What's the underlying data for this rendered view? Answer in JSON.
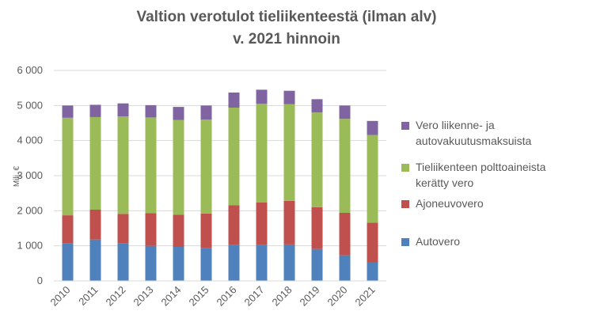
{
  "chart_data": {
    "type": "bar",
    "stacked": true,
    "title_lines": [
      "Valtion verotulot tieliikenteestä (ilman alv)",
      "v. 2021 hinnoin"
    ],
    "ylabel": "Milj. €",
    "xlabel": "",
    "categories": [
      "2010",
      "2011",
      "2012",
      "2013",
      "2014",
      "2015",
      "2016",
      "2017",
      "2018",
      "2019",
      "2020",
      "2021"
    ],
    "ylim": [
      0,
      6000
    ],
    "yticks": [
      0,
      1000,
      2000,
      3000,
      4000,
      5000,
      6000
    ],
    "ytick_labels": [
      "0",
      "1 000",
      "2 000",
      "3 000",
      "4 000",
      "5 000",
      "6 000"
    ],
    "grid": true,
    "legend_position": "right",
    "series": [
      {
        "name": "Autovero",
        "color": "#4f81bd",
        "values": [
          1080,
          1180,
          1080,
          1000,
          970,
          940,
          1020,
          1020,
          1040,
          910,
          730,
          520
        ]
      },
      {
        "name": "Ajoneuvovero",
        "color": "#c0504d",
        "values": [
          790,
          850,
          830,
          930,
          920,
          980,
          1140,
          1220,
          1240,
          1190,
          1210,
          1140
        ]
      },
      {
        "name": "Tieliikenteen polttoaineista kerätty vero",
        "color": "#9bbb59",
        "values": [
          2780,
          2640,
          2780,
          2730,
          2700,
          2680,
          2780,
          2810,
          2760,
          2700,
          2680,
          2500
        ]
      },
      {
        "name": "Vero liikenne- ja autovakuutusmaksuista",
        "color": "#8064a2",
        "values": [
          350,
          350,
          370,
          350,
          370,
          400,
          430,
          400,
          380,
          380,
          380,
          400
        ]
      }
    ],
    "legend": [
      {
        "label_lines": [
          "Vero liikenne- ja",
          "autovakuutusmaksuista"
        ],
        "color": "#8064a2"
      },
      {
        "label_lines": [
          "Tieliikenteen polttoaineista",
          "kerätty vero"
        ],
        "color": "#9bbb59"
      },
      {
        "label_lines": [
          "Ajoneuvovero"
        ],
        "color": "#c0504d"
      },
      {
        "label_lines": [
          "Autovero"
        ],
        "color": "#4f81bd"
      }
    ]
  }
}
